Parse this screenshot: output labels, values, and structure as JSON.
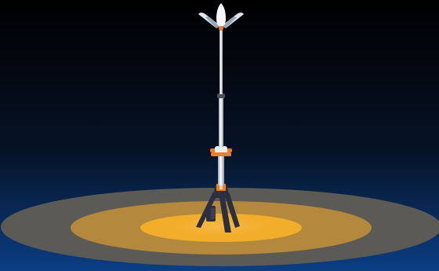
{
  "scene": {
    "subject": "telescoping-tripod-work-light",
    "colors": {
      "sky_top": "#000000",
      "sky_mid": "#061225",
      "sky_bottom": "#0b3e84",
      "ring_outer": "#5b5a55",
      "ring_middle": "#b4893d",
      "ring_inner": "#f2ad2b",
      "pole": "#e7ecf2",
      "accent_orange": "#f07e24",
      "legs": "#2b2f3f"
    }
  }
}
